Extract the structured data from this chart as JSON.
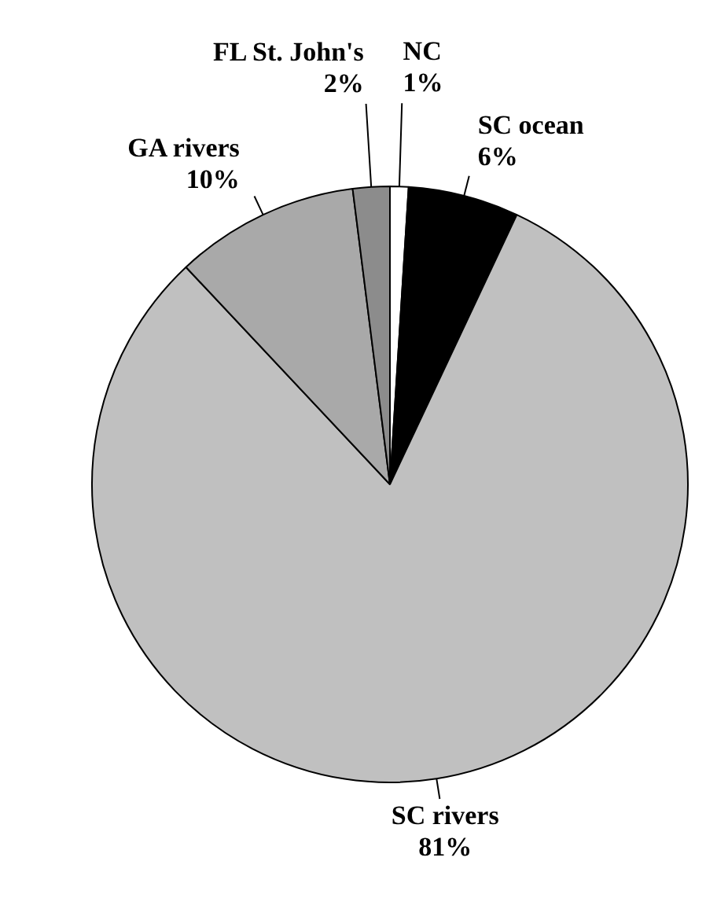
{
  "chart_data": {
    "type": "pie",
    "categories": [
      "NC",
      "SC ocean",
      "SC rivers",
      "GA rivers",
      "FL St. John's"
    ],
    "values": [
      1,
      6,
      81,
      10,
      2
    ],
    "colors": [
      "#ffffff",
      "#000000",
      "#c0c0c0",
      "#a9a9a9",
      "#8c8c8c"
    ],
    "value_labels": [
      "1%",
      "6%",
      "81%",
      "10%",
      "2%"
    ],
    "legend": false
  }
}
